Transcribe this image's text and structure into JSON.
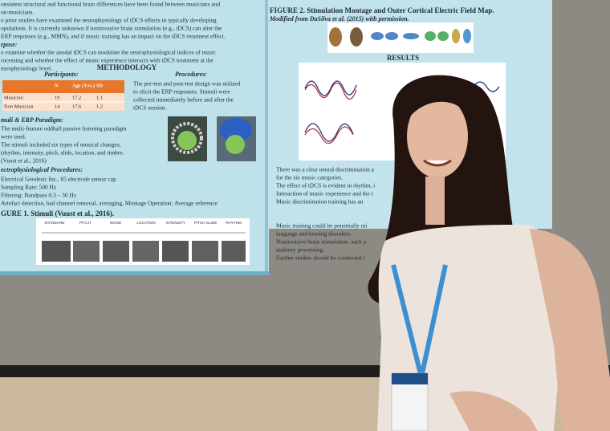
{
  "poster": {
    "intro": [
      "onsistent structural and functional brain differences have been found between musicians and",
      "on-musicians.",
      "o prior studies have examined the neurophysiology of tDCS effects in typically developing",
      "opulations. It is currently unknown if noninvasive brain stimulation (e.g., tDCS) can alter the",
      "ERP responses (e.g., MMN), and if music training has an impact on the tDCS treatment effect."
    ],
    "purpose_heading": "rpose:",
    "purpose": [
      "o examine whether the anodal tDCS can modulate the neurophysiological indices of music",
      "rocessing and whether the effect of music experience interacts with tDCS treatment at the",
      "europhysiology level."
    ],
    "methodology_heading": "METHODOLOGY",
    "participants_heading": "Participants:",
    "procedures_heading": "Procedures:",
    "table": {
      "header": [
        "N",
        "Age (Yrs.)",
        "SD"
      ],
      "rows": [
        [
          "Musician",
          "19",
          "17.2",
          "1.1"
        ],
        [
          "Non Musician",
          "14",
          "17.6",
          "1.2"
        ]
      ]
    },
    "procedures": [
      "The pre-test and post-test design was utilized",
      "to elicit the ERP responses. Stimuli were",
      "collected immediately before and after the",
      "tDCS session."
    ],
    "paradigm_heading": "muli & ERP Paradigm:",
    "paradigm": [
      "The multi-feature oddball passive listening paradigm",
      "were used.",
      "The stimuli included six types of musical changes,",
      "(rhythm, intensity, pitch, slide, location, and timbre.",
      "(Vuust et al., 2016)"
    ],
    "electro_heading": "ectrophysiological Procedures:",
    "electro": [
      "Electrical Geodesic Inc., 65 electrode sensor cap",
      "Sampling Rate: 500 Hz",
      "Filtering: Bandpass 0.3 – 30 Hz",
      "Artefact detection, bad channel removal, averaging, Montage Operation: Average reference"
    ],
    "figure1_caption": "GURE 1. Stimuli (Vuust et al., 2016).",
    "figure1_labels": [
      "STANDARD",
      "PITCH",
      "NOISE",
      "LOCATION",
      "INTENSITY",
      "PITCH SLIDE",
      "RHYTHM"
    ],
    "figure2_caption": "FIGURE 2. Stimulation Montage and Outer Cortical Electric Field Map.",
    "figure2_credit": "Modified from DaSilva et al. (2015) with permission.",
    "results_heading": "RESULTS",
    "results": [
      "There was a clear neural discrimination a",
      "for the six music categories.",
      "The effect of tDCS is evident in rhythm, i",
      "Interaction of music experience and the t",
      "Music discrimination training has an"
    ],
    "discussion": [
      "Music training could be potentially uti",
      "language and hearing disorders.",
      "Noninvasive brain stimulation, such a",
      "auditory processing.",
      "Further studies should be conducted t"
    ]
  }
}
